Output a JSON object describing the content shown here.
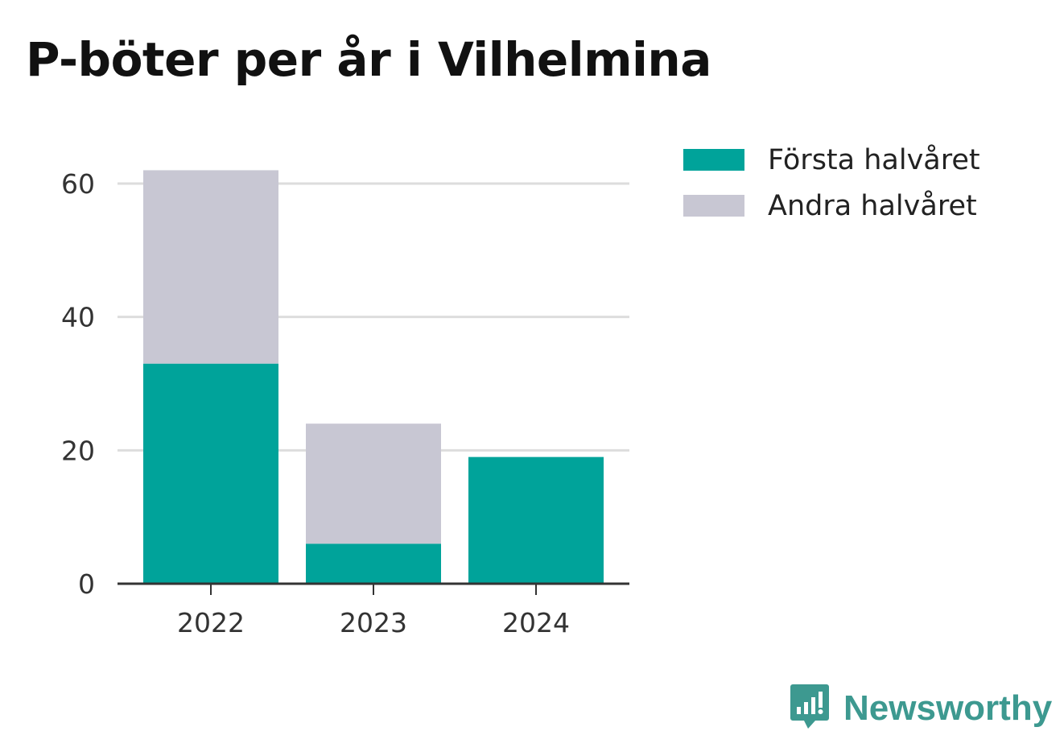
{
  "title": "P-böter per år i Vilhelmina",
  "chart_data": {
    "type": "bar",
    "stacked": true,
    "categories": [
      "2022",
      "2023",
      "2024"
    ],
    "series": [
      {
        "name": "Första halvåret",
        "color": "#00a39a",
        "values": [
          33,
          6,
          19
        ]
      },
      {
        "name": "Andra halvåret",
        "color": "#c8c7d3",
        "values": [
          29,
          18,
          0
        ]
      }
    ],
    "ylim": [
      0,
      60
    ],
    "yticks": [
      0,
      20,
      40,
      60
    ],
    "grid": true,
    "legend_position": "right"
  },
  "brand": {
    "name": "Newsworthy",
    "icon": "newsworthy-logo-icon",
    "color": "#3d9990"
  }
}
